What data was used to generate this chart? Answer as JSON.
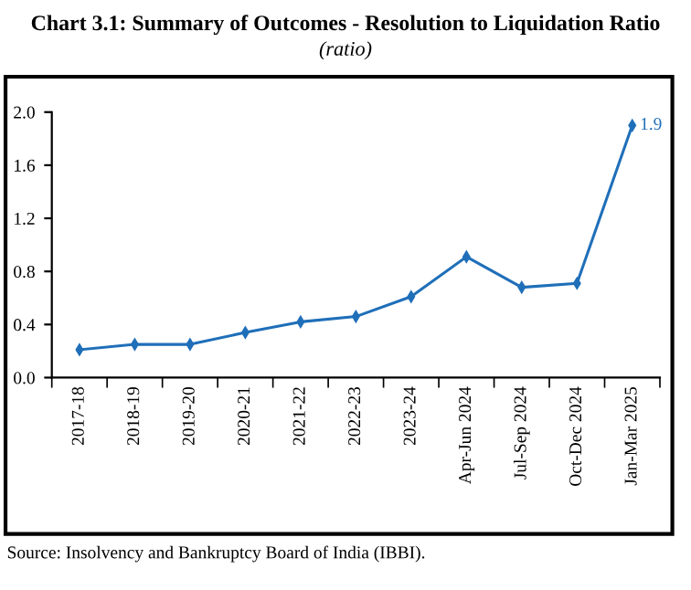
{
  "chart_data": {
    "type": "line",
    "title": "Chart 3.1: Summary of Outcomes - Resolution to Liquidation Ratio",
    "subtitle": "(ratio)",
    "categories": [
      "2017-18",
      "2018-19",
      "2019-20",
      "2020-21",
      "2021-22",
      "2022-23",
      "2023-24",
      "Apr-Jun 2024",
      "Jul-Sep 2024",
      "Oct-Dec 2024",
      "Jan-Mar 2025"
    ],
    "series": [
      {
        "color": "#1f6fb9",
        "values": [
          0.21,
          0.25,
          0.25,
          0.34,
          0.42,
          0.46,
          0.61,
          0.91,
          0.68,
          0.71,
          1.9
        ],
        "value_labels": [
          null,
          null,
          null,
          null,
          null,
          null,
          null,
          null,
          null,
          null,
          "1.9"
        ]
      }
    ],
    "ylim": [
      0,
      2.0
    ],
    "yticks": [
      {
        "value": 0,
        "label": "0.0"
      },
      {
        "value": 0.4,
        "label": "0.4"
      },
      {
        "value": 0.8,
        "label": "0.8"
      },
      {
        "value": 1.2,
        "label": "1.2"
      },
      {
        "value": 1.6,
        "label": "1.6"
      },
      {
        "value": 2.0,
        "label": "2.0"
      }
    ],
    "marker": "diamond",
    "line_style": "solid",
    "grid": false,
    "legend": false,
    "annotations": [
      "Source: Insolvency and Bankruptcy Board of India (IBBI)."
    ]
  }
}
